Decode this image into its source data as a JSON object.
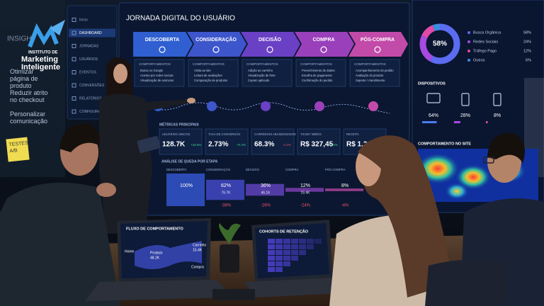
{
  "logo": {
    "line1": "INSTITUTO DE",
    "line2": "Marketing",
    "line3": "Inteligente"
  },
  "glass_board": {
    "title": "INSIGH",
    "items": [
      "Otimizar página de produto",
      "Reduzir atrito no checkout",
      "Personalizar comunicação"
    ],
    "sticky_note": "TESTES A/B"
  },
  "sidebar": {
    "items": [
      "Início",
      "DASHBOARD",
      "JORNADAS",
      "USUÁRIOS",
      "EVENTOS",
      "CONVERSÕES",
      "RELATÓRIOS",
      "CONFIGURAÇÕES"
    ]
  },
  "screen": {
    "title": "JORNADA DIGITAL DO USUÁRIO",
    "stages": [
      {
        "name": "DESCOBERTA",
        "heading": "COMPORTAMENTOS",
        "behaviors": [
          "Busca no Google",
          "Acesso por redes sociais",
          "Visualização de anúncios"
        ]
      },
      {
        "name": "CONSIDERAÇÃO",
        "heading": "COMPORTAMENTOS",
        "behaviors": [
          "Visita ao site",
          "Leitura de avaliações",
          "Comparação de produtos"
        ]
      },
      {
        "name": "DECISÃO",
        "heading": "COMPORTAMENTOS",
        "behaviors": [
          "Adição ao carrinho",
          "Visualização de frete",
          "Cupom aplicado"
        ]
      },
      {
        "name": "COMPRA",
        "heading": "COMPORTAMENTOS",
        "behaviors": [
          "Preenchimento de dados",
          "Escolha de pagamento",
          "Confirmação do pedido"
        ]
      },
      {
        "name": "PÓS-COMPRA",
        "heading": "COMPORTAMENTOS",
        "behaviors": [
          "Acompanhamento do pedido",
          "Avaliação do produto",
          "Suporte / Atendimento"
        ]
      }
    ],
    "metrics": {
      "title": "MÉTRICAS PRINCIPAIS",
      "items": [
        {
          "label": "USUÁRIOS ÚNICOS",
          "value": "128.7K",
          "change": "+18.6%"
        },
        {
          "label": "TAXA DE CONVERSÃO",
          "value": "2.73%",
          "change": "+0.4%"
        },
        {
          "label": "CARRINHOS ABANDONADOS",
          "value": "68.3%",
          "change": "-4.2%"
        },
        {
          "label": "TICKET MÉDIO",
          "value": "R$ 327,45",
          "change": "+8.5%"
        },
        {
          "label": "RECEITA",
          "value": "R$ 1.2"
        }
      ]
    },
    "funnel": {
      "title": "ANÁLISE DE QUEDA POR ETAPA",
      "steps": [
        {
          "stage": "DESCOBERTA",
          "share": {
            "value": 100,
            "label": "100%"
          }
        },
        {
          "stage": "CONSIDERAÇÃO",
          "share": {
            "value": 62,
            "label": "62%"
          },
          "users": "76.7K",
          "drop": "-38%"
        },
        {
          "stage": "DECISÃO",
          "share": {
            "value": 36,
            "label": "36%"
          },
          "users": "46.1K",
          "drop": "-26%"
        },
        {
          "stage": "COMPRA",
          "share": {
            "value": 12,
            "label": "12%"
          },
          "users": "15.4K",
          "drop": "-24%"
        },
        {
          "stage": "PÓS-COMPRA",
          "share": {
            "value": 8,
            "label": "8%"
          },
          "drop": "-4%"
        }
      ]
    },
    "traffic": {
      "sources": [
        {
          "name": "Busca Orgânica",
          "share": {
            "value": 58,
            "label": "58%"
          },
          "color": "#5b6cf0"
        },
        {
          "name": "Redes Sociais",
          "share": {
            "value": 24,
            "label": "24%"
          },
          "color": "#a64ae0"
        },
        {
          "name": "Tráfego Pago",
          "share": {
            "value": 12,
            "label": "12%"
          },
          "color": "#e04aa8"
        },
        {
          "name": "Outros",
          "share": {
            "value": 6,
            "label": "6%"
          },
          "color": "#3a8ee0"
        }
      ]
    },
    "devices": {
      "title": "DISPOSITIVOS",
      "items": [
        {
          "value": 64,
          "label": "64%",
          "color": "#4a7cf0"
        },
        {
          "value": 28,
          "label": "28%",
          "color": "#a64ae0"
        },
        {
          "value": 8,
          "label": "8%",
          "color": "#e04aa8"
        }
      ]
    },
    "heatmap": {
      "title": "COMPORTAMENTO NO SITE"
    }
  },
  "laptop_left": {
    "title": "FLUXO DE COMPORTAMENTO",
    "nodes": [
      "Home",
      "Produto",
      "48.2K",
      "Carrinho",
      "15.4K",
      "Compra"
    ]
  },
  "laptop_right": {
    "title": "COHORTS DE RETENÇÃO"
  }
}
